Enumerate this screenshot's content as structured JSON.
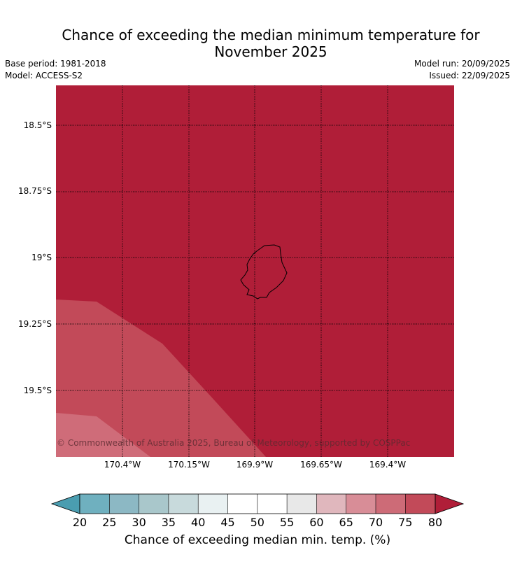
{
  "title_line1": "Chance of exceeding the median minimum temperature for",
  "title_line2": "November 2025",
  "meta": {
    "base_period": "Base period: 1981-2018",
    "model": "Model: ACCESS-S2",
    "model_run": "Model run: 20/09/2025",
    "issued": "Issued: 22/09/2025"
  },
  "map": {
    "lat_labels": [
      "18.5°S",
      "18.75°S",
      "19°S",
      "19.25°S",
      "19.5°S"
    ],
    "lon_labels": [
      "170.4°W",
      "170.15°W",
      "169.9°W",
      "169.65°W",
      "169.4°W"
    ],
    "region_colors": {
      "over_80": "#b01e38",
      "75_80": "#c24a59",
      "70_75": "#cf6c79"
    },
    "copyright": "© Commonwealth of Australia 2025, Bureau of Meteorology, supported by COSPPac"
  },
  "colorbar": {
    "label": "Chance of exceeding median min. temp. (%)",
    "ticks": [
      "20",
      "25",
      "30",
      "35",
      "40",
      "45",
      "50",
      "55",
      "60",
      "65",
      "70",
      "75",
      "80"
    ],
    "colors": [
      "#4a9db0",
      "#6fb0bf",
      "#8cb8c4",
      "#a9c7cb",
      "#c8dadc",
      "#e9f1f2",
      "#ffffff",
      "#ffffff",
      "#e8e8e8",
      "#e0b7bd",
      "#d88d97",
      "#cd6b77",
      "#c24a59",
      "#b01e38"
    ]
  }
}
